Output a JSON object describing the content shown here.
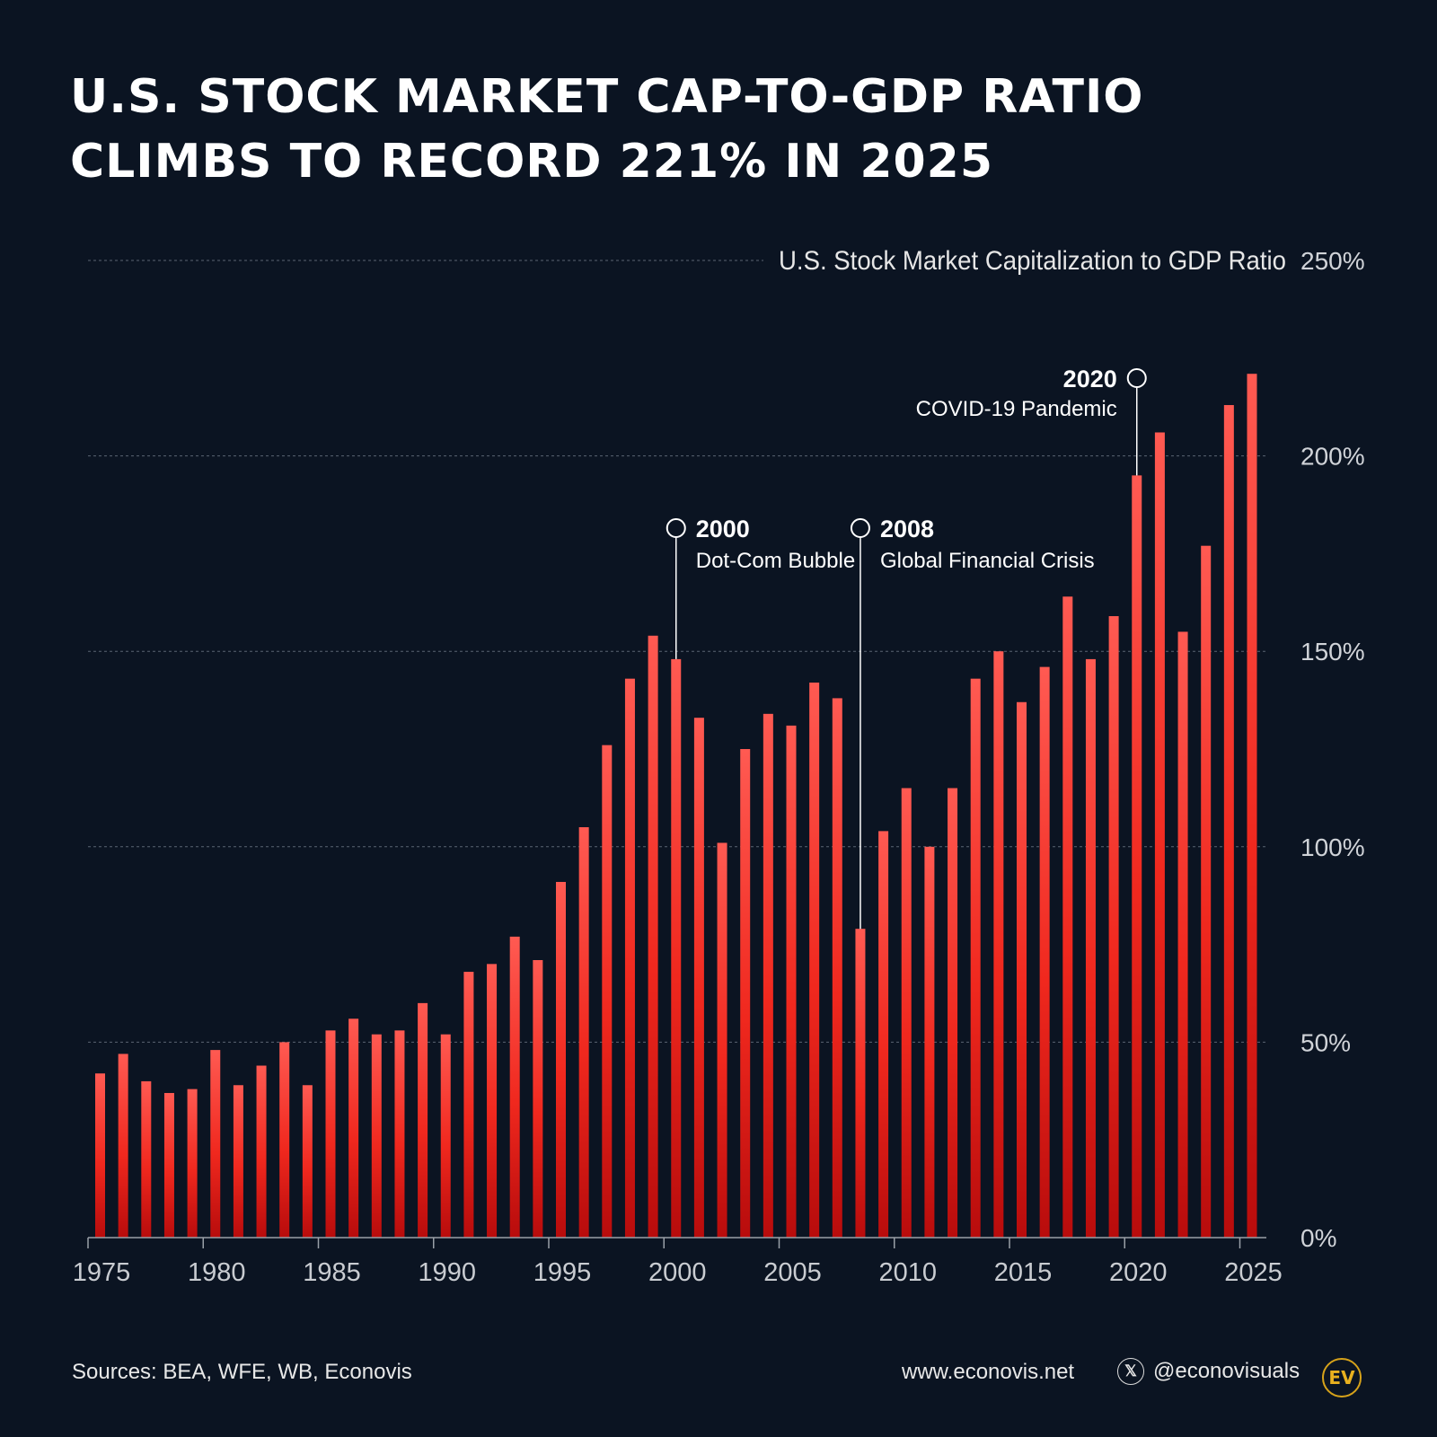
{
  "title": {
    "line1": "U.S. Stock Market Cap-to-GDP Ratio",
    "line2": "Climbs to Record 221% in 2025"
  },
  "chart_data": {
    "type": "bar",
    "title": "U.S. Stock Market Capitalization to GDP Ratio",
    "x": [
      1975,
      1976,
      1977,
      1978,
      1979,
      1980,
      1981,
      1982,
      1983,
      1984,
      1985,
      1986,
      1987,
      1988,
      1989,
      1990,
      1991,
      1992,
      1993,
      1994,
      1995,
      1996,
      1997,
      1998,
      1999,
      2000,
      2001,
      2002,
      2003,
      2004,
      2005,
      2006,
      2007,
      2008,
      2009,
      2010,
      2011,
      2012,
      2013,
      2014,
      2015,
      2016,
      2017,
      2018,
      2019,
      2020,
      2021,
      2022,
      2023,
      2024,
      2025
    ],
    "values": [
      42,
      47,
      40,
      37,
      38,
      48,
      39,
      44,
      50,
      39,
      53,
      56,
      52,
      53,
      60,
      52,
      68,
      70,
      77,
      71,
      91,
      105,
      126,
      143,
      154,
      148,
      133,
      101,
      125,
      134,
      131,
      142,
      138,
      79,
      104,
      115,
      100,
      115,
      143,
      150,
      137,
      146,
      164,
      148,
      159,
      195,
      206,
      155,
      177,
      213,
      221
    ],
    "x_ticks": [
      "1975",
      "1980",
      "1985",
      "1990",
      "1995",
      "2000",
      "2005",
      "2010",
      "2015",
      "2020",
      "2025"
    ],
    "y_ticks": [
      "0%",
      "50%",
      "100%",
      "150%",
      "200%",
      "250%"
    ],
    "ylim": [
      0,
      250
    ],
    "grid": true,
    "bar_color": "#f0281e",
    "annotations": [
      {
        "year": 2000,
        "label": "2000",
        "text": "Dot-Com Bubble"
      },
      {
        "year": 2008,
        "label": "2008",
        "text": "Global Financial Crisis"
      },
      {
        "year": 2020,
        "label": "2020",
        "text": "COVID-19 Pandemic"
      }
    ]
  },
  "footer": {
    "sources": "Sources: BEA, WFE, WB, Econovis",
    "website": "www.econovis.net",
    "x_icon": "x-logo-icon",
    "x_icon_glyph": "𝕏",
    "handle": "@econovisuals",
    "logo": "EV"
  }
}
